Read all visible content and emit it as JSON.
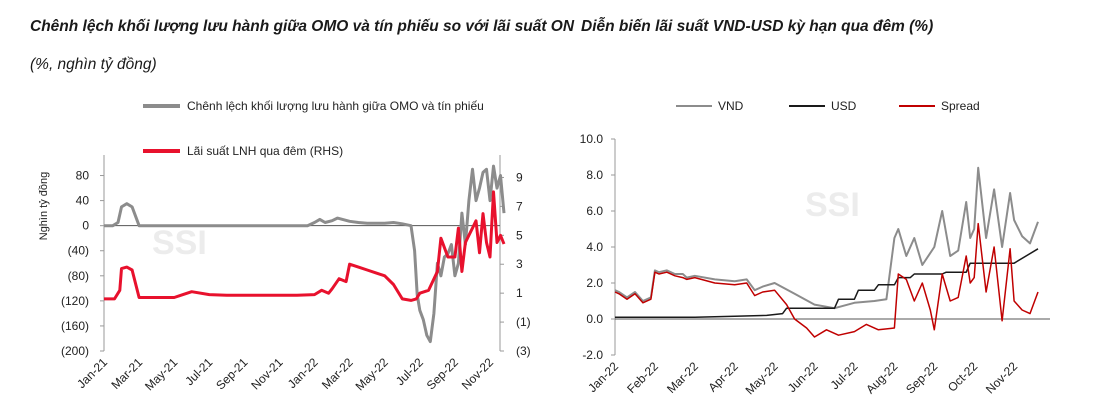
{
  "left": {
    "title_line1": "Chênh lệch khối lượng lưu hành giữa OMO và tín phiếu so với lãi suất ON",
    "title_line2": "(%, nghìn tỷ đồng)",
    "watermark": "SSI"
  },
  "right": {
    "title": "Diễn biến lãi suất VND-USD kỳ hạn qua đêm (%)",
    "watermark": "SSI"
  },
  "chart_data": [
    {
      "type": "line",
      "title": "Chênh lệch khối lượng lưu hành giữa OMO và tín phiếu so với lãi suất ON (%, nghìn tỷ đồng)",
      "ylabel": "Nghìn tỷ đồng",
      "ylim": [
        -200,
        100
      ],
      "y2lim": [
        -3,
        10
      ],
      "x_ticks": [
        "Jan-21",
        "Mar-21",
        "May-21",
        "Jul-21",
        "Sep-21",
        "Nov-21",
        "Jan-22",
        "Mar-22",
        "May-22",
        "Jul-22",
        "Sep-22",
        "Nov-22"
      ],
      "y_ticks": [
        {
          "value": 80,
          "label": "80",
          "color": "#1a1a1a"
        },
        {
          "value": 40,
          "label": "40",
          "color": "#1a1a1a"
        },
        {
          "value": 0,
          "label": "0",
          "color": "#1a1a1a"
        },
        {
          "value": -40,
          "label": "(40)",
          "color": "#c00000"
        },
        {
          "value": -80,
          "label": "(80)",
          "color": "#c00000"
        },
        {
          "value": -120,
          "label": "(120)",
          "color": "#c00000"
        },
        {
          "value": -160,
          "label": "(160)",
          "color": "#c00000"
        },
        {
          "value": -200,
          "label": "(200)",
          "color": "#c00000"
        }
      ],
      "y2_ticks": [
        {
          "value": 9,
          "label": "9",
          "color": "#1a1a1a"
        },
        {
          "value": 7,
          "label": "7",
          "color": "#1a1a1a"
        },
        {
          "value": 5,
          "label": "5",
          "color": "#1a1a1a"
        },
        {
          "value": 3,
          "label": "3",
          "color": "#1a1a1a"
        },
        {
          "value": 1,
          "label": "1",
          "color": "#1a1a1a"
        },
        {
          "value": -1,
          "label": "(1)",
          "color": "#c00000"
        },
        {
          "value": -3,
          "label": "(3)",
          "color": "#c00000"
        }
      ],
      "series": [
        {
          "name": "Chênh lệch khối lượng lưu hành giữa OMO và tín phiếu",
          "axis": "left",
          "color": "#8c8c8c",
          "x": [
            0,
            0.5,
            0.8,
            1.0,
            1.3,
            1.6,
            2.0,
            2.5,
            3,
            4,
            5,
            6,
            7,
            8,
            9,
            10,
            11,
            11.6,
            12,
            12.3,
            12.6,
            13,
            13.3,
            13.6,
            14,
            14.5,
            15,
            16,
            16.5,
            17,
            17.5,
            17.7,
            17.85,
            18,
            18.2,
            18.4,
            18.6,
            18.8,
            19,
            19.2,
            19.4,
            19.6,
            19.8,
            20,
            20.2,
            20.4,
            20.6,
            20.8,
            21,
            21.2,
            21.4,
            21.6,
            21.8,
            22,
            22.2,
            22.4,
            22.6,
            22.8
          ],
          "values": [
            0,
            0,
            5,
            30,
            35,
            30,
            0,
            0,
            0,
            0,
            0,
            0,
            0,
            0,
            0,
            0,
            0,
            0,
            5,
            10,
            5,
            8,
            12,
            10,
            7,
            5,
            4,
            4,
            5,
            3,
            0,
            -40,
            -110,
            -135,
            -150,
            -175,
            -185,
            -140,
            -60,
            -80,
            -50,
            -45,
            -30,
            -80,
            -60,
            20,
            -30,
            40,
            90,
            40,
            60,
            85,
            90,
            40,
            95,
            60,
            80,
            20
          ]
        },
        {
          "name": "Lãi suất LNH qua đêm (RHS)",
          "axis": "right",
          "color": "#e8112d",
          "x": [
            0,
            0.6,
            0.9,
            1.0,
            1.3,
            1.6,
            2,
            2.5,
            3,
            4,
            4.5,
            5,
            6,
            7,
            8,
            9,
            10,
            11,
            12,
            12.4,
            12.8,
            13,
            13.4,
            13.8,
            14,
            14.5,
            15,
            15.5,
            16,
            16.5,
            17,
            17.5,
            17.8,
            18,
            18.5,
            19,
            19.2,
            19.6,
            20,
            20.2,
            20.4,
            20.6,
            20.8,
            21,
            21.2,
            21.4,
            21.6,
            21.8,
            22,
            22.2,
            22.4,
            22.6,
            22.8
          ],
          "values": [
            0.6,
            0.6,
            1.2,
            2.7,
            2.8,
            2.6,
            0.7,
            0.7,
            0.7,
            0.7,
            0.9,
            1.1,
            0.9,
            0.85,
            0.85,
            0.85,
            0.85,
            0.85,
            0.9,
            1.2,
            1.0,
            1.3,
            2.0,
            1.8,
            3.0,
            2.8,
            2.6,
            2.4,
            2.2,
            1.6,
            0.6,
            0.5,
            0.6,
            1.0,
            1.2,
            2.5,
            4.8,
            3.5,
            3.5,
            5.5,
            2.5,
            4.5,
            5.0,
            5.5,
            6.0,
            3.8,
            6.5,
            4.5,
            3.5,
            8.0,
            4.5,
            5.0,
            4.4
          ]
        }
      ]
    },
    {
      "type": "line",
      "title": "Diễn biến lãi suất VND-USD kỳ hạn qua đêm (%)",
      "ylim": [
        -2.0,
        10.0
      ],
      "x_ticks": [
        "Jan-22",
        "Feb-22",
        "Mar-22",
        "Apr-22",
        "May-22",
        "Jun-22",
        "Jul-22",
        "Aug-22",
        "Sep-22",
        "Oct-22",
        "Nov-22"
      ],
      "y_ticks": [
        "10.0",
        "8.0",
        "6.0",
        "4.0",
        "2.0",
        "0.0",
        "-2.0"
      ],
      "series": [
        {
          "name": "VND",
          "color": "#8c8c8c",
          "x": [
            0,
            0.1,
            0.3,
            0.5,
            0.7,
            0.9,
            1.0,
            1.1,
            1.3,
            1.5,
            1.7,
            1.8,
            2.0,
            2.5,
            3.0,
            3.3,
            3.5,
            3.7,
            4.0,
            4.5,
            5.0,
            5.5,
            6.0,
            6.5,
            6.8,
            7.0,
            7.1,
            7.3,
            7.5,
            7.7,
            8.0,
            8.2,
            8.4,
            8.6,
            8.8,
            8.9,
            9.0,
            9.1,
            9.3,
            9.5,
            9.7,
            9.9,
            10.0,
            10.2,
            10.4,
            10.6
          ],
          "values": [
            1.6,
            1.5,
            1.2,
            1.5,
            1.0,
            1.2,
            2.7,
            2.6,
            2.7,
            2.5,
            2.5,
            2.3,
            2.4,
            2.2,
            2.1,
            2.2,
            1.6,
            1.8,
            2.0,
            1.4,
            0.8,
            0.6,
            0.9,
            1.0,
            1.1,
            4.5,
            5.0,
            3.5,
            4.5,
            3.0,
            4.0,
            6.0,
            3.5,
            3.8,
            6.5,
            4.5,
            5.0,
            8.4,
            4.5,
            7.2,
            4.0,
            7.0,
            5.5,
            4.6,
            4.2,
            5.4
          ]
        },
        {
          "name": "USD",
          "color": "#1a1a1a",
          "x": [
            0,
            2.0,
            3.0,
            3.8,
            4.2,
            4.3,
            5.5,
            5.6,
            6.0,
            6.1,
            6.5,
            6.6,
            7.0,
            7.1,
            7.4,
            7.5,
            8.2,
            8.3,
            8.8,
            8.9,
            10.0,
            10.6
          ],
          "values": [
            0.1,
            0.1,
            0.15,
            0.2,
            0.3,
            0.6,
            0.6,
            1.1,
            1.1,
            1.6,
            1.6,
            1.9,
            1.9,
            2.3,
            2.3,
            2.5,
            2.5,
            2.6,
            2.6,
            3.1,
            3.1,
            3.9
          ]
        },
        {
          "name": "Spread",
          "color": "#c00000",
          "x": [
            0,
            0.1,
            0.3,
            0.5,
            0.7,
            0.9,
            1.0,
            1.1,
            1.3,
            1.5,
            1.7,
            1.8,
            2.0,
            2.5,
            3.0,
            3.3,
            3.5,
            3.7,
            4.0,
            4.3,
            4.5,
            4.8,
            5.0,
            5.3,
            5.6,
            6.0,
            6.3,
            6.6,
            7.0,
            7.1,
            7.3,
            7.5,
            7.7,
            7.9,
            8.0,
            8.2,
            8.4,
            8.6,
            8.8,
            8.9,
            9.0,
            9.1,
            9.3,
            9.5,
            9.7,
            9.9,
            10.0,
            10.2,
            10.4,
            10.6
          ],
          "values": [
            1.5,
            1.4,
            1.1,
            1.4,
            0.9,
            1.1,
            2.6,
            2.5,
            2.6,
            2.4,
            2.3,
            2.2,
            2.3,
            2.0,
            1.9,
            2.0,
            1.3,
            1.5,
            1.6,
            0.8,
            0.0,
            -0.5,
            -1.0,
            -0.6,
            -0.9,
            -0.7,
            -0.3,
            -0.6,
            -0.5,
            2.5,
            2.2,
            1.0,
            2.0,
            0.5,
            -0.6,
            2.5,
            1.0,
            1.2,
            3.5,
            2.0,
            2.3,
            5.3,
            1.5,
            4.0,
            -0.1,
            3.9,
            1.0,
            0.5,
            0.3,
            1.5
          ]
        }
      ]
    }
  ]
}
